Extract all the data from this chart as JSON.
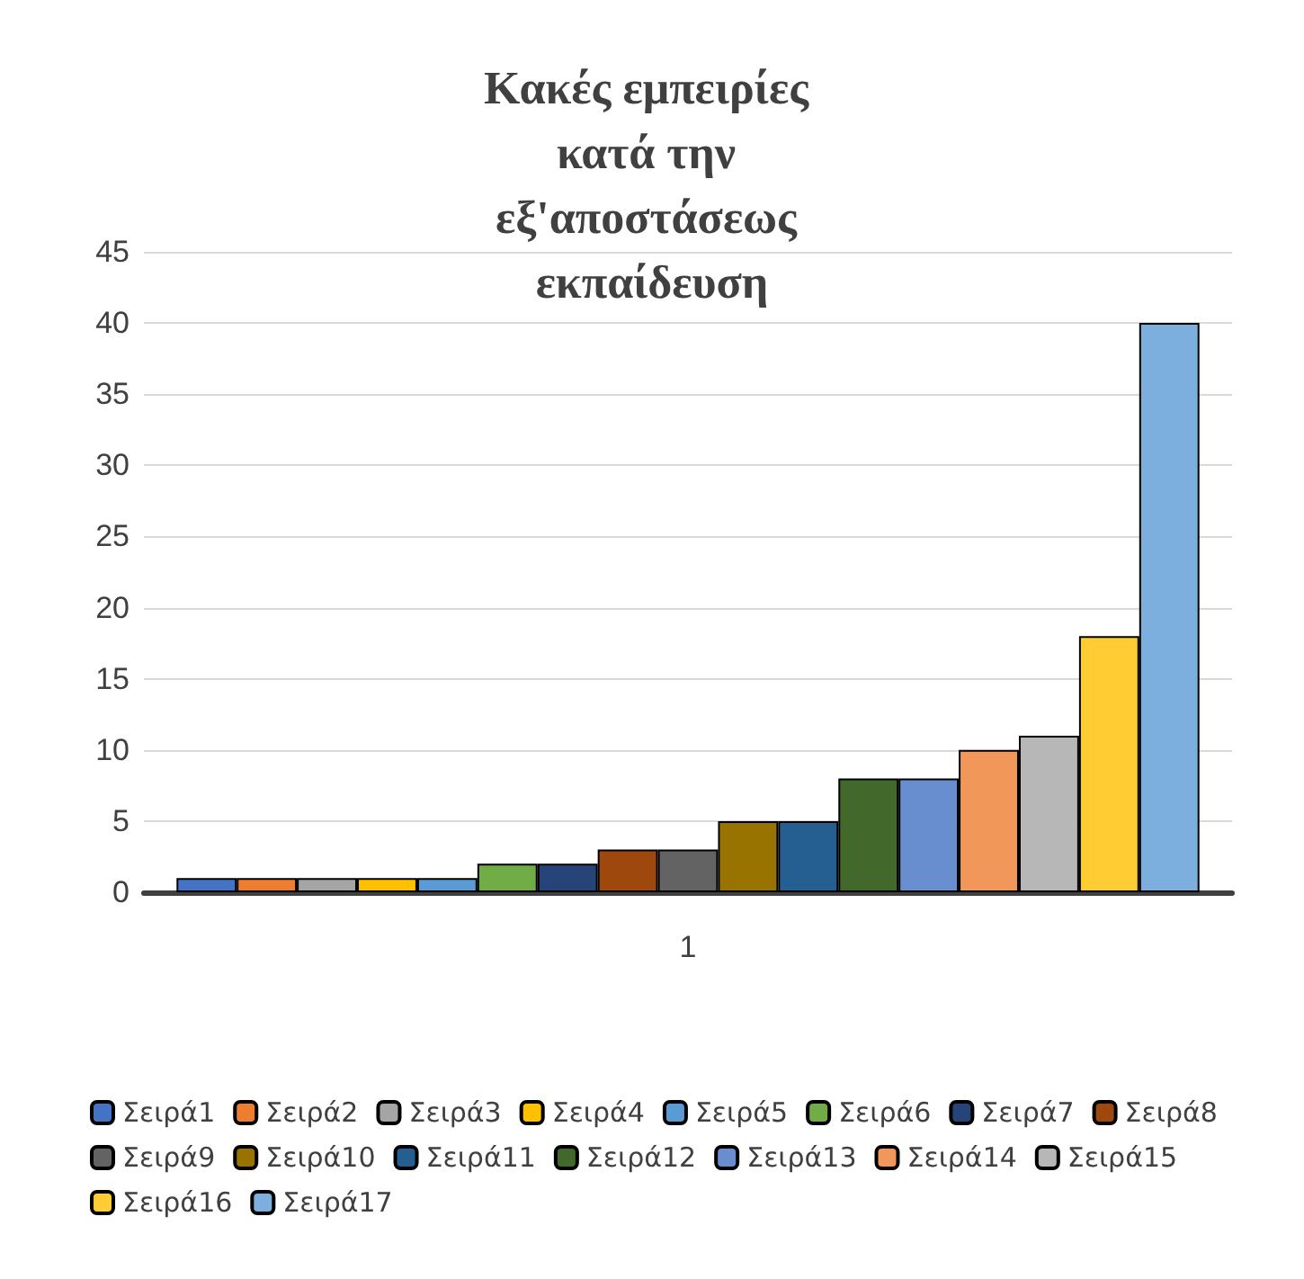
{
  "chart_data": {
    "type": "bar",
    "title": "Κακές εμπειρίες κατά την εξ'αποστάσεως εκπαίδευση",
    "categories": [
      "1"
    ],
    "series": [
      {
        "name": "Σειρά1",
        "color": "#4472c4",
        "values": [
          1
        ]
      },
      {
        "name": "Σειρά2",
        "color": "#ed7d31",
        "values": [
          1
        ]
      },
      {
        "name": "Σειρά3",
        "color": "#a5a5a5",
        "values": [
          1
        ]
      },
      {
        "name": "Σειρά4",
        "color": "#ffc000",
        "values": [
          1
        ]
      },
      {
        "name": "Σειρά5",
        "color": "#5b9bd5",
        "values": [
          1
        ]
      },
      {
        "name": "Σειρά6",
        "color": "#70ad47",
        "values": [
          2
        ]
      },
      {
        "name": "Σειρά7",
        "color": "#264478",
        "values": [
          2
        ]
      },
      {
        "name": "Σειρά8",
        "color": "#9e480e",
        "values": [
          3
        ]
      },
      {
        "name": "Σειρά9",
        "color": "#636363",
        "values": [
          3
        ]
      },
      {
        "name": "Σειρά10",
        "color": "#997300",
        "values": [
          5
        ]
      },
      {
        "name": "Σειρά11",
        "color": "#255e91",
        "values": [
          5
        ]
      },
      {
        "name": "Σειρά12",
        "color": "#43682b",
        "values": [
          8
        ]
      },
      {
        "name": "Σειρά13",
        "color": "#698ed0",
        "values": [
          8
        ]
      },
      {
        "name": "Σειρά14",
        "color": "#f1975a",
        "values": [
          10
        ]
      },
      {
        "name": "Σειρά15",
        "color": "#b7b7b7",
        "values": [
          11
        ]
      },
      {
        "name": "Σειρά16",
        "color": "#ffcd33",
        "values": [
          18
        ]
      },
      {
        "name": "Σειρά17",
        "color": "#7cafdd",
        "values": [
          40
        ]
      }
    ],
    "ylim": [
      0,
      45
    ],
    "yticks": [
      0,
      5,
      10,
      15,
      20,
      25,
      30,
      35,
      40,
      45
    ],
    "grid": "y",
    "legend": "bottom"
  }
}
